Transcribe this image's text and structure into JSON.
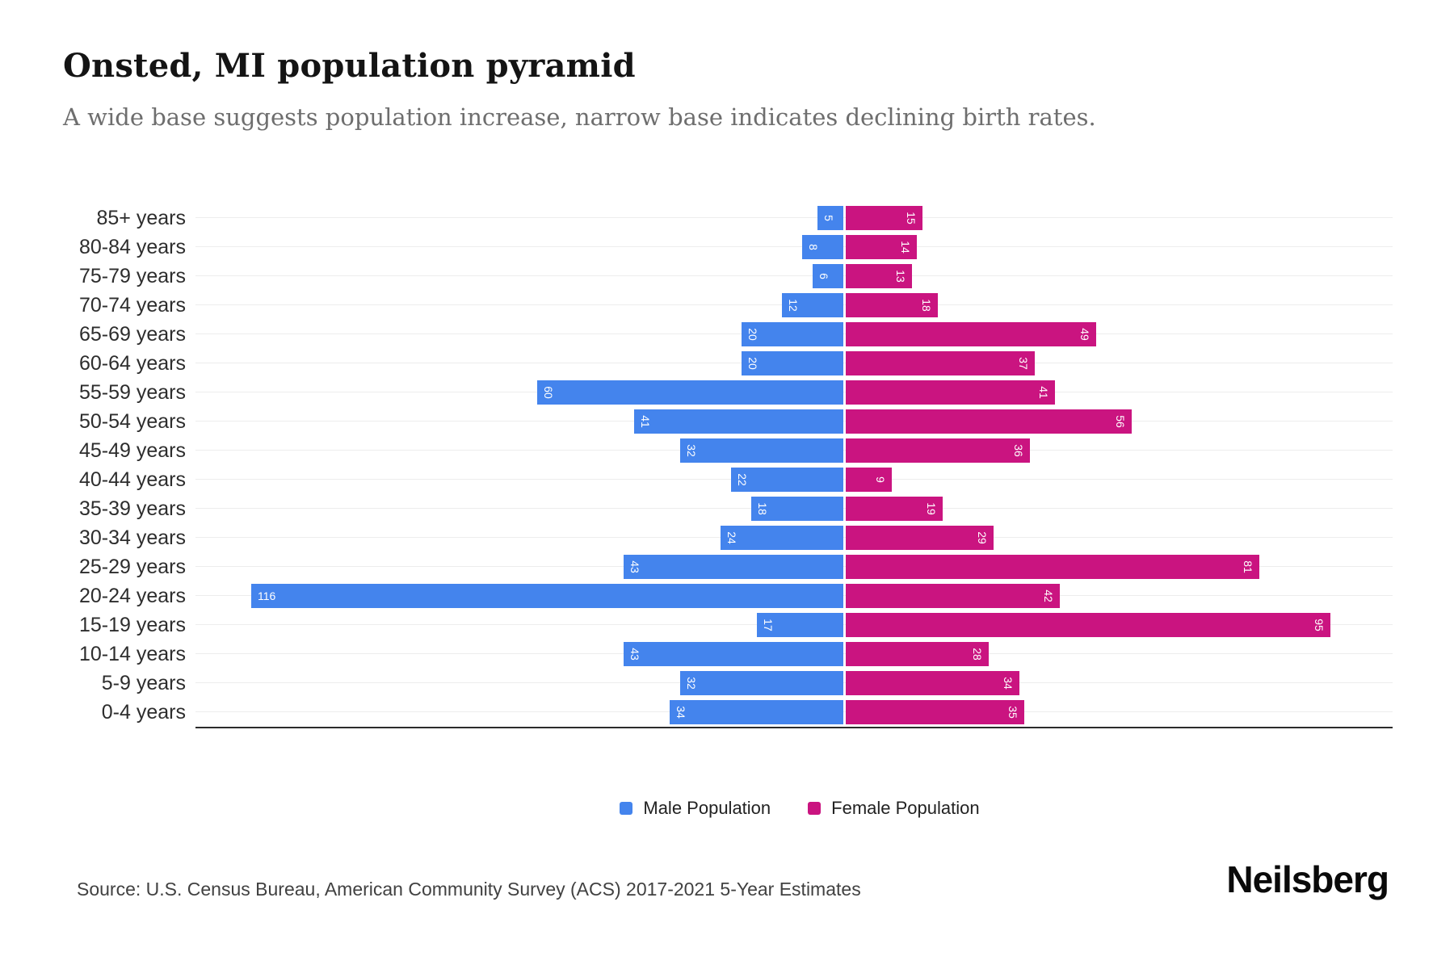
{
  "header": {
    "title": "Onsted, MI population pyramid",
    "subtitle": "A wide base suggests population increase, narrow base indicates declining birth rates."
  },
  "chart_data": {
    "type": "bar",
    "variant": "population-pyramid",
    "orientation": "horizontal",
    "categories": [
      "85+ years",
      "80-84 years",
      "75-79 years",
      "70-74 years",
      "65-69 years",
      "60-64 years",
      "55-59 years",
      "50-54 years",
      "45-49 years",
      "40-44 years",
      "35-39 years",
      "30-34 years",
      "25-29 years",
      "20-24 years",
      "15-19 years",
      "10-14 years",
      "5-9 years",
      "0-4 years"
    ],
    "series": [
      {
        "name": "Male Population",
        "side": "left",
        "color": "#4484ed",
        "values": [
          5,
          8,
          6,
          12,
          20,
          20,
          60,
          41,
          32,
          22,
          18,
          24,
          43,
          116,
          17,
          43,
          32,
          34
        ]
      },
      {
        "name": "Female Population",
        "side": "right",
        "color": "#ca1480",
        "values": [
          15,
          14,
          13,
          18,
          49,
          37,
          41,
          56,
          36,
          9,
          19,
          29,
          81,
          42,
          95,
          28,
          34,
          35
        ]
      }
    ],
    "value_labels": "white, inside bar at outer end, rotated 90° (3-digit values horizontal)",
    "grid": true,
    "gridline_color": "#ededed",
    "axis_line_color": "#2c2c2c",
    "legend_position": "bottom",
    "xlim_left_max": 127,
    "xlim_right_max": 106
  },
  "footer": {
    "source": "Source: U.S. Census Bureau, American Community Survey (ACS) 2017-2021 5-Year Estimates",
    "brand": "Neilsberg"
  }
}
